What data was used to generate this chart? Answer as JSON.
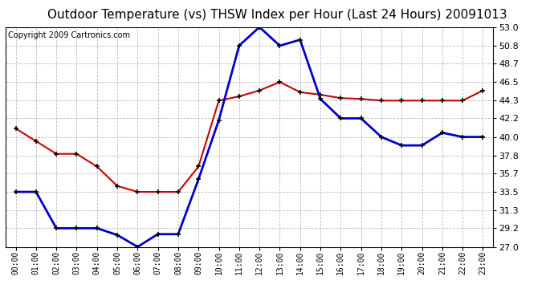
{
  "title": "Outdoor Temperature (vs) THSW Index per Hour (Last 24 Hours) 20091013",
  "copyright": "Copyright 2009 Cartronics.com",
  "hours": [
    "00:00",
    "01:00",
    "02:00",
    "03:00",
    "04:00",
    "05:00",
    "06:00",
    "07:00",
    "08:00",
    "09:00",
    "10:00",
    "11:00",
    "12:00",
    "13:00",
    "14:00",
    "15:00",
    "16:00",
    "17:00",
    "18:00",
    "19:00",
    "20:00",
    "21:00",
    "22:00",
    "23:00"
  ],
  "temp_red": [
    41.0,
    39.5,
    38.0,
    38.0,
    36.5,
    34.2,
    33.5,
    33.5,
    33.5,
    36.5,
    44.3,
    44.8,
    45.5,
    46.5,
    45.3,
    45.0,
    44.6,
    44.5,
    44.3,
    44.3,
    44.3,
    44.3,
    44.3,
    45.5
  ],
  "thsw_blue": [
    33.5,
    33.5,
    29.2,
    29.2,
    29.2,
    28.4,
    27.0,
    28.5,
    28.5,
    35.0,
    42.0,
    50.8,
    53.0,
    50.8,
    51.5,
    44.5,
    42.2,
    42.2,
    40.0,
    39.0,
    39.0,
    40.5,
    40.0,
    40.0
  ],
  "ymin": 27.0,
  "ymax": 53.0,
  "yticks": [
    27.0,
    29.2,
    31.3,
    33.5,
    35.7,
    37.8,
    40.0,
    42.2,
    44.3,
    46.5,
    48.7,
    50.8,
    53.0
  ],
  "red_color": "#cc0000",
  "blue_color": "#0000cc",
  "bg_color": "#ffffff",
  "grid_color": "#bbbbbb",
  "title_fontsize": 11,
  "copyright_fontsize": 7
}
